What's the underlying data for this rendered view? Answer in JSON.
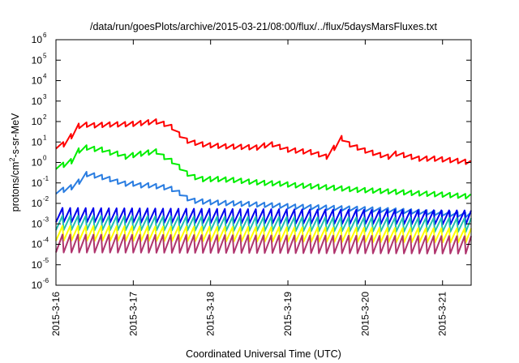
{
  "chart_data": {
    "type": "line",
    "title": "/data/run/goesPlots/archive/2015-03-21/08:00/flux/../flux/5daysMarsFluxes.txt",
    "xlabel": "Coordinated Universal Time (UTC)",
    "ylabel_parts": [
      "protons/cm",
      "2",
      "-s-sr-MeV"
    ],
    "y_scale": "log",
    "ylim": [
      1e-06,
      1000000.0
    ],
    "y_ticks": [
      {
        "base": "10",
        "exp": "-6",
        "value": 1e-06
      },
      {
        "base": "10",
        "exp": "-5",
        "value": 1e-05
      },
      {
        "base": "10",
        "exp": "-4",
        "value": 0.0001
      },
      {
        "base": "10",
        "exp": "-3",
        "value": 0.001
      },
      {
        "base": "10",
        "exp": "-2",
        "value": 0.01
      },
      {
        "base": "10",
        "exp": "-1",
        "value": 0.1
      },
      {
        "base": "10",
        "exp": "0",
        "value": 1
      },
      {
        "base": "10",
        "exp": "1",
        "value": 10
      },
      {
        "base": "10",
        "exp": "2",
        "value": 100
      },
      {
        "base": "10",
        "exp": "3",
        "value": 1000
      },
      {
        "base": "10",
        "exp": "4",
        "value": 10000
      },
      {
        "base": "10",
        "exp": "5",
        "value": 100000
      },
      {
        "base": "10",
        "exp": "6",
        "value": 1000000
      }
    ],
    "x_days_start": "2015-03-16",
    "xlim_days": [
      0,
      5.37
    ],
    "x_ticks": [
      {
        "label": "2015-3-16",
        "day": 0
      },
      {
        "label": "2015-3-17",
        "day": 1
      },
      {
        "label": "2015-3-18",
        "day": 2
      },
      {
        "label": "2015-3-19",
        "day": 3
      },
      {
        "label": "2015-3-20",
        "day": 4
      },
      {
        "label": "2015-3-21",
        "day": 5
      }
    ],
    "grid": false,
    "series": [
      {
        "color": "#ff0000",
        "kind": "envelope",
        "points": [
          [
            0,
            8
          ],
          [
            0.05,
            8
          ],
          [
            0.1,
            10
          ],
          [
            0.15,
            16
          ],
          [
            0.2,
            25
          ],
          [
            0.25,
            28
          ],
          [
            0.3,
            80
          ],
          [
            0.35,
            95
          ],
          [
            0.5,
            85
          ],
          [
            0.6,
            90
          ],
          [
            0.75,
            95
          ],
          [
            0.85,
            95
          ],
          [
            1.0,
            100
          ],
          [
            1.1,
            110
          ],
          [
            1.2,
            120
          ],
          [
            1.3,
            130
          ],
          [
            1.4,
            100
          ],
          [
            1.5,
            70
          ],
          [
            1.6,
            30
          ],
          [
            1.7,
            15
          ],
          [
            1.8,
            12
          ],
          [
            1.9,
            10
          ],
          [
            2.0,
            9
          ],
          [
            2.2,
            8
          ],
          [
            2.4,
            7.5
          ],
          [
            2.6,
            7
          ],
          [
            2.68,
            6.5
          ],
          [
            2.72,
            12
          ],
          [
            2.8,
            10
          ],
          [
            3.0,
            5.5
          ],
          [
            3.2,
            4.5
          ],
          [
            3.35,
            4
          ],
          [
            3.42,
            3
          ],
          [
            3.5,
            2.5
          ],
          [
            3.57,
            2.2
          ],
          [
            3.58,
            6
          ],
          [
            3.63,
            8
          ],
          [
            3.64,
            30
          ],
          [
            3.7,
            20
          ],
          [
            3.8,
            10
          ],
          [
            4.0,
            5
          ],
          [
            4.2,
            3
          ],
          [
            4.3,
            2.5
          ],
          [
            4.32,
            4
          ],
          [
            4.5,
            3
          ],
          [
            4.7,
            2
          ],
          [
            4.9,
            2
          ],
          [
            5.1,
            1.7
          ],
          [
            5.3,
            1.4
          ],
          [
            5.37,
            1.2
          ]
        ],
        "tooth_amp": 1.7
      },
      {
        "color": "#00ee00",
        "kind": "envelope",
        "points": [
          [
            0,
            0.8
          ],
          [
            0.1,
            1
          ],
          [
            0.2,
            1.5
          ],
          [
            0.3,
            5
          ],
          [
            0.4,
            7
          ],
          [
            0.5,
            6
          ],
          [
            0.6,
            5.5
          ],
          [
            0.7,
            4
          ],
          [
            0.8,
            3.5
          ],
          [
            0.9,
            2.5
          ],
          [
            1.0,
            3
          ],
          [
            1.1,
            3.5
          ],
          [
            1.2,
            4
          ],
          [
            1.3,
            4.5
          ],
          [
            1.35,
            3
          ],
          [
            1.45,
            2
          ],
          [
            1.55,
            1.2
          ],
          [
            1.65,
            0.5
          ],
          [
            1.75,
            0.28
          ],
          [
            1.9,
            0.2
          ],
          [
            2.1,
            0.2
          ],
          [
            2.3,
            0.18
          ],
          [
            2.5,
            0.15
          ],
          [
            2.7,
            0.13
          ],
          [
            2.9,
            0.12
          ],
          [
            3.1,
            0.1
          ],
          [
            3.3,
            0.09
          ],
          [
            3.5,
            0.08
          ],
          [
            3.7,
            0.07
          ],
          [
            3.9,
            0.06
          ],
          [
            4.1,
            0.055
          ],
          [
            4.3,
            0.05
          ],
          [
            4.5,
            0.045
          ],
          [
            4.7,
            0.04
          ],
          [
            4.9,
            0.037
          ],
          [
            5.1,
            0.033
          ],
          [
            5.37,
            0.028
          ]
        ],
        "tooth_amp": 1.7
      },
      {
        "color": "#2a7de1",
        "kind": "envelope",
        "points": [
          [
            0,
            0.05
          ],
          [
            0.1,
            0.06
          ],
          [
            0.2,
            0.08
          ],
          [
            0.3,
            0.15
          ],
          [
            0.4,
            0.35
          ],
          [
            0.5,
            0.3
          ],
          [
            0.6,
            0.25
          ],
          [
            0.7,
            0.2
          ],
          [
            0.8,
            0.15
          ],
          [
            0.9,
            0.12
          ],
          [
            1.0,
            0.12
          ],
          [
            1.1,
            0.1
          ],
          [
            1.2,
            0.1
          ],
          [
            1.3,
            0.09
          ],
          [
            1.4,
            0.08
          ],
          [
            1.55,
            0.06
          ],
          [
            1.65,
            0.03
          ],
          [
            1.75,
            0.018
          ],
          [
            1.9,
            0.016
          ],
          [
            2.1,
            0.014
          ],
          [
            2.3,
            0.013
          ],
          [
            2.5,
            0.012
          ],
          [
            2.7,
            0.011
          ],
          [
            2.9,
            0.01
          ],
          [
            3.1,
            0.009
          ],
          [
            3.3,
            0.0085
          ],
          [
            3.5,
            0.008
          ],
          [
            3.7,
            0.0075
          ],
          [
            3.9,
            0.007
          ],
          [
            4.1,
            0.0065
          ],
          [
            4.3,
            0.006
          ],
          [
            4.5,
            0.0055
          ],
          [
            4.7,
            0.005
          ],
          [
            4.9,
            0.0045
          ],
          [
            5.1,
            0.004
          ],
          [
            5.37,
            0.0035
          ]
        ],
        "tooth_amp": 1.7
      },
      {
        "color": "#0000ee",
        "kind": "sawtooth",
        "low": 0.0012,
        "high": 0.006,
        "low_end": 0.0009,
        "high_end": 0.0045
      },
      {
        "color": "#20c0b0",
        "kind": "sawtooth",
        "low": 0.0005,
        "high": 0.0025,
        "low_end": 0.0004,
        "high_end": 0.0019
      },
      {
        "color": "#ffff00",
        "kind": "sawtooth",
        "low": 0.00015,
        "high": 0.0008,
        "low_end": 0.00012,
        "high_end": 0.0006
      },
      {
        "color": "#b0356e",
        "kind": "sawtooth",
        "low": 4e-05,
        "high": 0.0003,
        "low_end": 3.5e-05,
        "high_end": 0.00025
      }
    ],
    "teeth_per_day": 10
  }
}
